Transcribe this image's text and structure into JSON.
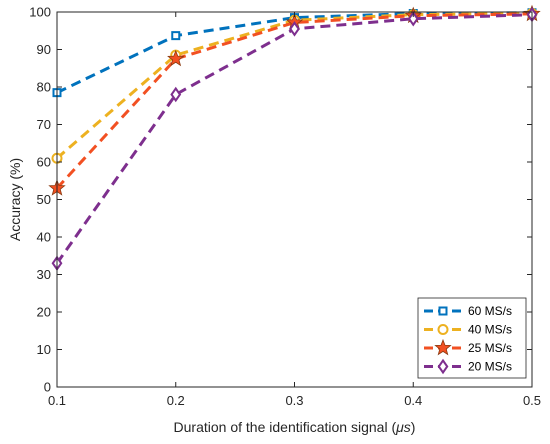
{
  "chart_data": {
    "type": "line",
    "title": "",
    "xlabel_main": "Duration of the identification signal (",
    "xlabel_unit": "μs",
    "xlabel_close": ")",
    "ylabel": "Accuracy (%)",
    "x": [
      0.1,
      0.2,
      0.3,
      0.4,
      0.5
    ],
    "x_tick_labels": [
      "0.1",
      "0.2",
      "0.3",
      "0.4",
      "0.5"
    ],
    "y_ticks": [
      0,
      10,
      20,
      30,
      40,
      50,
      60,
      70,
      80,
      90,
      100
    ],
    "xlim": [
      0.1,
      0.5
    ],
    "ylim": [
      0,
      100
    ],
    "grid": false,
    "legend_position": "bottom-right",
    "series": [
      {
        "name": "60 MS/s",
        "values": [
          78.5,
          93.7,
          98.5,
          99.6,
          99.8
        ],
        "color": "#0072BD",
        "marker": "square"
      },
      {
        "name": "40 MS/s",
        "values": [
          61.0,
          88.5,
          97.8,
          99.3,
          99.6
        ],
        "color": "#EDB120",
        "marker": "circle"
      },
      {
        "name": "25 MS/s",
        "values": [
          53.0,
          87.5,
          97.2,
          99.0,
          99.5
        ],
        "color": "#F25022",
        "marker": "star"
      },
      {
        "name": "20 MS/s",
        "values": [
          33.0,
          78.0,
          95.5,
          98.2,
          99.3
        ],
        "color": "#7E2F8E",
        "marker": "diamond"
      }
    ]
  }
}
